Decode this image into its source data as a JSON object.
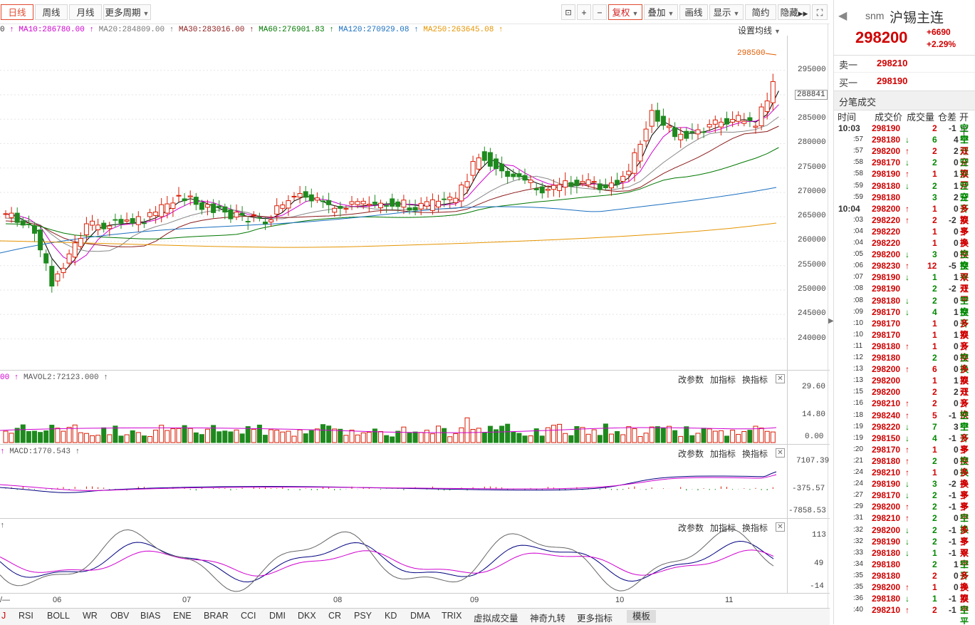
{
  "toolbar": {
    "periods": [
      "日线",
      "周线",
      "月线",
      "更多周期"
    ],
    "right_buttons": [
      "复权",
      "叠加",
      "画线",
      "显示",
      "简约",
      "隐藏"
    ]
  },
  "ma_legend": [
    {
      "label": "MA10:286780.00",
      "color": "#d000d0"
    },
    {
      "label": "MA20:284809.00",
      "color": "#777777"
    },
    {
      "label": "MA30:283016.00",
      "color": "#8b1a1a"
    },
    {
      "label": "MA60:276901.83",
      "color": "#007700"
    },
    {
      "label": "MA120:270929.08",
      "color": "#1a6fc0"
    },
    {
      "label": "MA250:263645.08",
      "color": "#e59400"
    }
  ],
  "ma_settings_label": "设置均线",
  "price_axis": [
    "295000",
    "290000",
    "285000",
    "280000",
    "275000",
    "270000",
    "265000",
    "260000",
    "255000",
    "250000",
    "245000",
    "240000"
  ],
  "current_price_tag": "288841",
  "high_price_tag": "298500",
  "volume_panel": {
    "legend": "MAVOL2:72123.000",
    "axis": [
      "29.60",
      "14.80",
      "0.00"
    ]
  },
  "macd_panel": {
    "legend": "MACD:1770.543",
    "axis": [
      "7107.39",
      "-375.57",
      "-7858.53"
    ]
  },
  "kdj_panel": {
    "axis": [
      "113",
      "49",
      "-14"
    ]
  },
  "panel_buttons": [
    "改参数",
    "加指标",
    "换指标"
  ],
  "x_axis": [
    "06",
    "07",
    "08",
    "09",
    "10",
    "11"
  ],
  "bottom_tabs": [
    "J",
    "RSI",
    "BOLL",
    "WR",
    "OBV",
    "BIAS",
    "ENE",
    "BRAR",
    "CCI",
    "DMI",
    "DKX",
    "CR",
    "PSY",
    "KD",
    "DMA",
    "TRIX",
    "虚拟成交量",
    "神奇九转",
    "更多指标",
    "模板"
  ],
  "quote": {
    "code": "snm",
    "name": "沪锡主连",
    "price": "298200",
    "change": "+6690",
    "change_pct": "+2.29%",
    "ask_label": "卖一",
    "ask": "298210",
    "bid_label": "买一",
    "bid": "298190"
  },
  "trades_title": "分笔成交",
  "trades_header": [
    "时间",
    "成交价",
    "成交量",
    "仓差",
    "开平"
  ],
  "trades": [
    {
      "t": "10:03",
      "p": "298190",
      "a": "",
      "v": "2",
      "d": "-1",
      "k": "空平",
      "c": "up"
    },
    {
      "t": ":57",
      "p": "298180",
      "a": "↓",
      "v": "6",
      "d": "4",
      "k": "空开",
      "c": "dn"
    },
    {
      "t": ":57",
      "p": "298200",
      "a": "↑",
      "v": "2",
      "d": "2",
      "k": "双开",
      "c": "up"
    },
    {
      "t": ":58",
      "p": "298170",
      "a": "↓",
      "v": "2",
      "d": "0",
      "k": "空换",
      "c": "dn"
    },
    {
      "t": ":58",
      "p": "298190",
      "a": "↑",
      "v": "1",
      "d": "1",
      "k": "双开",
      "c": "up"
    },
    {
      "t": ":59",
      "p": "298180",
      "a": "↓",
      "v": "2",
      "d": "1",
      "k": "空开",
      "c": "dn"
    },
    {
      "t": ":59",
      "p": "298180",
      "a": "",
      "v": "3",
      "d": "2",
      "k": "空开",
      "c": "dn"
    },
    {
      "t": "10:04",
      "p": "298200",
      "a": "↑",
      "v": "1",
      "d": "0",
      "k": "多换",
      "c": "up"
    },
    {
      "t": ":03",
      "p": "298220",
      "a": "↑",
      "v": "2",
      "d": "-2",
      "k": "双平",
      "c": "up"
    },
    {
      "t": ":04",
      "p": "298220",
      "a": "",
      "v": "1",
      "d": "0",
      "k": "多换",
      "c": "up"
    },
    {
      "t": ":04",
      "p": "298220",
      "a": "",
      "v": "1",
      "d": "0",
      "k": "多换",
      "c": "up"
    },
    {
      "t": ":05",
      "p": "298200",
      "a": "↓",
      "v": "3",
      "d": "0",
      "k": "空换",
      "c": "dn"
    },
    {
      "t": ":06",
      "p": "298230",
      "a": "↑",
      "v": "12",
      "d": "-5",
      "k": "空平",
      "c": "up"
    },
    {
      "t": ":07",
      "p": "298190",
      "a": "↓",
      "v": "1",
      "d": "1",
      "k": "双开",
      "c": "dn"
    },
    {
      "t": ":08",
      "p": "298190",
      "a": "",
      "v": "2",
      "d": "-2",
      "k": "双平",
      "c": "dn"
    },
    {
      "t": ":08",
      "p": "298180",
      "a": "↓",
      "v": "2",
      "d": "0",
      "k": "空换",
      "c": "dn"
    },
    {
      "t": ":09",
      "p": "298170",
      "a": "↓",
      "v": "4",
      "d": "1",
      "k": "空开",
      "c": "dn"
    },
    {
      "t": ":10",
      "p": "298170",
      "a": "",
      "v": "1",
      "d": "0",
      "k": "多换",
      "c": "up"
    },
    {
      "t": ":10",
      "p": "298170",
      "a": "",
      "v": "1",
      "d": "1",
      "k": "双开",
      "c": "up"
    },
    {
      "t": ":11",
      "p": "298180",
      "a": "↑",
      "v": "1",
      "d": "0",
      "k": "多换",
      "c": "up"
    },
    {
      "t": ":12",
      "p": "298180",
      "a": "",
      "v": "2",
      "d": "0",
      "k": "空换",
      "c": "dn"
    },
    {
      "t": ":13",
      "p": "298200",
      "a": "↑",
      "v": "6",
      "d": "0",
      "k": "多换",
      "c": "up"
    },
    {
      "t": ":13",
      "p": "298200",
      "a": "",
      "v": "1",
      "d": "1",
      "k": "双开",
      "c": "up"
    },
    {
      "t": ":15",
      "p": "298200",
      "a": "",
      "v": "2",
      "d": "2",
      "k": "双开",
      "c": "up"
    },
    {
      "t": ":16",
      "p": "298210",
      "a": "↑",
      "v": "2",
      "d": "0",
      "k": "多换",
      "c": "up"
    },
    {
      "t": ":18",
      "p": "298240",
      "a": "↑",
      "v": "5",
      "d": "-1",
      "k": "空平",
      "c": "up"
    },
    {
      "t": ":19",
      "p": "298220",
      "a": "↓",
      "v": "7",
      "d": "3",
      "k": "空开",
      "c": "dn"
    },
    {
      "t": ":19",
      "p": "298150",
      "a": "↓",
      "v": "4",
      "d": "-1",
      "k": "多平",
      "c": "dn"
    },
    {
      "t": ":20",
      "p": "298170",
      "a": "↑",
      "v": "1",
      "d": "0",
      "k": "多换",
      "c": "up"
    },
    {
      "t": ":21",
      "p": "298180",
      "a": "↑",
      "v": "2",
      "d": "0",
      "k": "空换",
      "c": "dn"
    },
    {
      "t": ":24",
      "p": "298210",
      "a": "↑",
      "v": "1",
      "d": "0",
      "k": "多换",
      "c": "up"
    },
    {
      "t": ":24",
      "p": "298190",
      "a": "↓",
      "v": "3",
      "d": "-2",
      "k": "多平",
      "c": "dn"
    },
    {
      "t": ":27",
      "p": "298170",
      "a": "↓",
      "v": "2",
      "d": "-1",
      "k": "多平",
      "c": "dn"
    },
    {
      "t": ":29",
      "p": "298200",
      "a": "↑",
      "v": "2",
      "d": "-1",
      "k": "多平",
      "c": "dn"
    },
    {
      "t": ":31",
      "p": "298210",
      "a": "↑",
      "v": "2",
      "d": "0",
      "k": "空换",
      "c": "dn"
    },
    {
      "t": ":32",
      "p": "298200",
      "a": "↓",
      "v": "2",
      "d": "-1",
      "k": "多平",
      "c": "dn"
    },
    {
      "t": ":32",
      "p": "298190",
      "a": "↓",
      "v": "2",
      "d": "-1",
      "k": "多平",
      "c": "dn"
    },
    {
      "t": ":33",
      "p": "298180",
      "a": "↓",
      "v": "1",
      "d": "-1",
      "k": "双平",
      "c": "dn"
    },
    {
      "t": ":34",
      "p": "298180",
      "a": "",
      "v": "2",
      "d": "1",
      "k": "空开",
      "c": "dn"
    },
    {
      "t": ":35",
      "p": "298180",
      "a": "",
      "v": "2",
      "d": "0",
      "k": "多换",
      "c": "up"
    },
    {
      "t": ":35",
      "p": "298200",
      "a": "↑",
      "v": "1",
      "d": "0",
      "k": "多换",
      "c": "up"
    },
    {
      "t": ":36",
      "p": "298180",
      "a": "↓",
      "v": "1",
      "d": "-1",
      "k": "双平",
      "c": "dn"
    },
    {
      "t": ":40",
      "p": "298210",
      "a": "↑",
      "v": "2",
      "d": "-1",
      "k": "空平",
      "c": "up"
    }
  ],
  "colors": {
    "up": "#d00000",
    "down": "#008800",
    "accent": "#e04a2f"
  }
}
